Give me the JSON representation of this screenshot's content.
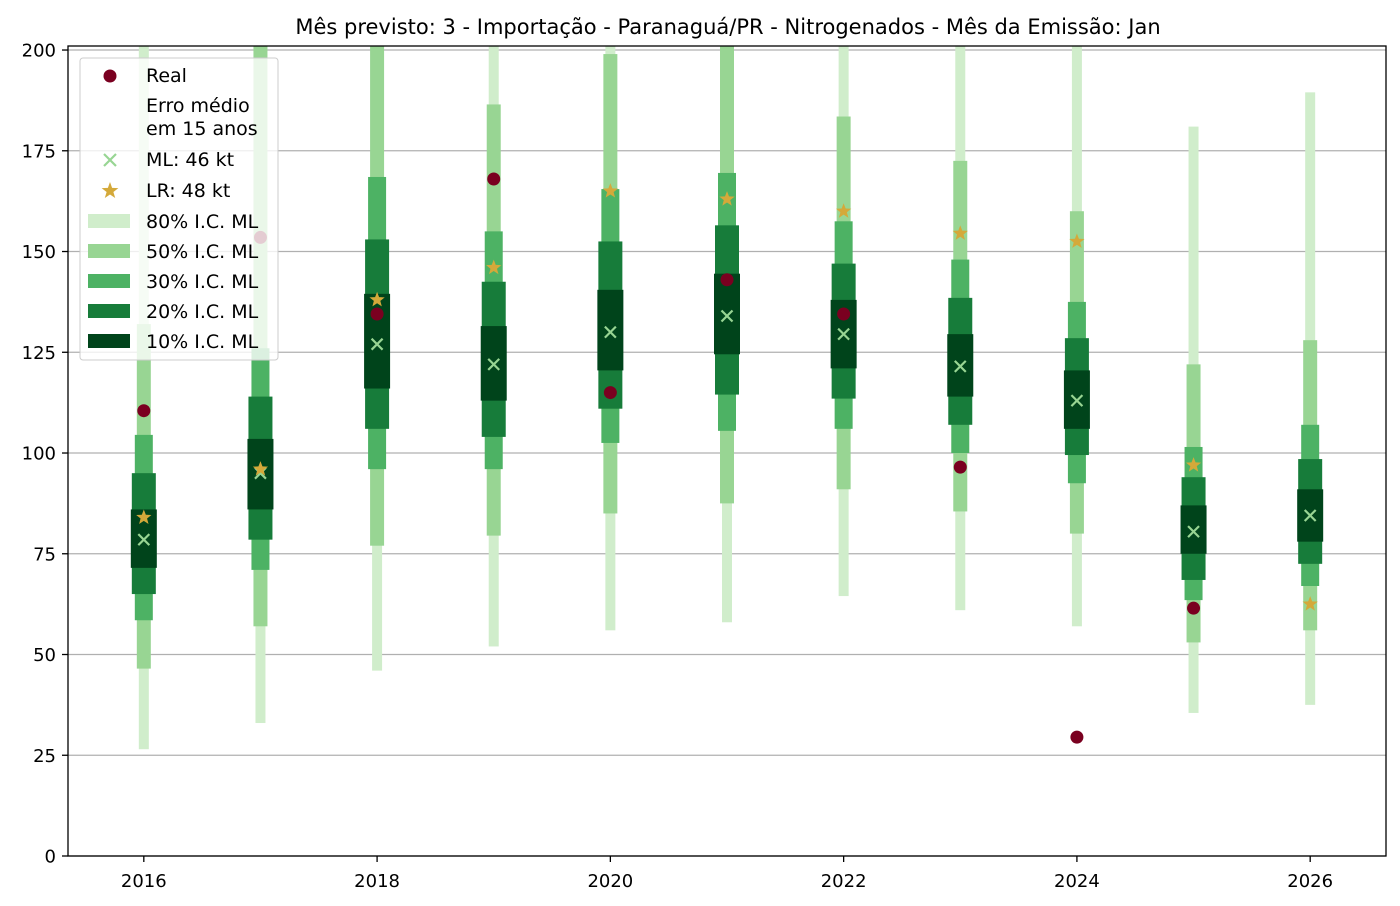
{
  "chart_data": {
    "type": "scatter",
    "title": "Mês previsto: 3 - Importação - Paranaguá/PR - Nitrogenados - Mês da Emissão: Jan",
    "xlabel": "",
    "ylabel": "",
    "xlim": [
      2015.35,
      2026.65
    ],
    "ylim": [
      0,
      201
    ],
    "x_ticks": [
      2016,
      2018,
      2020,
      2022,
      2024,
      2026
    ],
    "y_ticks": [
      0,
      25,
      50,
      75,
      100,
      125,
      150,
      175,
      200
    ],
    "grid": "horizontal",
    "legend_position": "top-left",
    "legend": {
      "real": "Real",
      "note_line1": "Erro médio",
      "note_line2": "em 15 anos",
      "ml": "ML: 46 kt",
      "lr": "LR: 48 kt",
      "ci80": "80% I.C. ML",
      "ci50": "50% I.C. ML",
      "ci30": "30% I.C. ML",
      "ci20": "20% I.C. ML",
      "ci10": "10% I.C. ML"
    },
    "colors": {
      "real": "#7a0020",
      "ml": "#98d593",
      "lr": "#d4a93a",
      "ci80": "#d0edcb",
      "ci50": "#98d593",
      "ci30": "#4db264",
      "ci20": "#177c3a",
      "ci10": "#00441b",
      "grid": "#b0b0b0"
    },
    "years": [
      2016,
      2017,
      2018,
      2019,
      2020,
      2021,
      2022,
      2023,
      2024,
      2025,
      2026
    ],
    "real": [
      110.5,
      153.5,
      134.5,
      168,
      115,
      143,
      134.5,
      96.5,
      29.5,
      61.5,
      null
    ],
    "ml": [
      78.5,
      95,
      127,
      122,
      130,
      134,
      129.5,
      121.5,
      113,
      80.5,
      84.5
    ],
    "lr": [
      84,
      96,
      138,
      146,
      165,
      163,
      160,
      154.5,
      152.5,
      97,
      62.5
    ],
    "ci80": [
      [
        26.5,
        201
      ],
      [
        33,
        201
      ],
      [
        46,
        201
      ],
      [
        52,
        201
      ],
      [
        56,
        201
      ],
      [
        58,
        201
      ],
      [
        64.5,
        201
      ],
      [
        61,
        201
      ],
      [
        57,
        201
      ],
      [
        35.5,
        181
      ],
      [
        37.5,
        189.5
      ]
    ],
    "ci50": [
      [
        46.5,
        132
      ],
      [
        57,
        201
      ],
      [
        77,
        201
      ],
      [
        79.5,
        186.5
      ],
      [
        85,
        199
      ],
      [
        87.5,
        201
      ],
      [
        91,
        183.5
      ],
      [
        85.5,
        172.5
      ],
      [
        80,
        160
      ],
      [
        53,
        122
      ],
      [
        56,
        128
      ]
    ],
    "ci30": [
      [
        58.5,
        104.5
      ],
      [
        71,
        126
      ],
      [
        96,
        168.5
      ],
      [
        96,
        155
      ],
      [
        102.5,
        165.5
      ],
      [
        105.5,
        169.5
      ],
      [
        106,
        157.5
      ],
      [
        100,
        148
      ],
      [
        92.5,
        137.5
      ],
      [
        63.5,
        101.5
      ],
      [
        67,
        107
      ]
    ],
    "ci20": [
      [
        65,
        95
      ],
      [
        78.5,
        114
      ],
      [
        106,
        153
      ],
      [
        104,
        142.5
      ],
      [
        111,
        152.5
      ],
      [
        114.5,
        156.5
      ],
      [
        113.5,
        147
      ],
      [
        107,
        138.5
      ],
      [
        99.5,
        128.5
      ],
      [
        68.5,
        94
      ],
      [
        72.5,
        98.5
      ]
    ],
    "ci10": [
      [
        71.5,
        86
      ],
      [
        86,
        103.5
      ],
      [
        116,
        139.5
      ],
      [
        113,
        131.5
      ],
      [
        120.5,
        140.5
      ],
      [
        124.5,
        144.5
      ],
      [
        121,
        138
      ],
      [
        114,
        129.5
      ],
      [
        106,
        120.5
      ],
      [
        75,
        87
      ],
      [
        78,
        91
      ]
    ]
  }
}
